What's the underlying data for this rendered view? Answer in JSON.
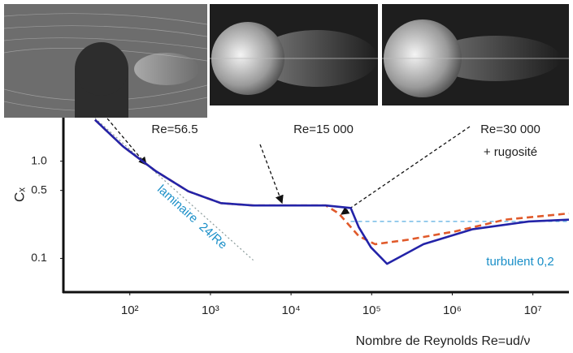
{
  "chart_data": {
    "type": "line",
    "xlog": true,
    "ylog": true,
    "xlim": [
      15,
      28000000
    ],
    "ylim": [
      0.045,
      2.8
    ],
    "xticks": [
      {
        "value": 100,
        "label": "10²"
      },
      {
        "value": 1000,
        "label": "10³"
      },
      {
        "value": 10000,
        "label": "10⁴"
      },
      {
        "value": 100000,
        "label": "10⁵"
      },
      {
        "value": 1000000,
        "label": "10⁶"
      },
      {
        "value": 10000000,
        "label": "10⁷"
      }
    ],
    "yticks": [
      {
        "value": 0.1,
        "label": "0.1"
      },
      0.5,
      {
        "value": 1,
        "label": "1.0"
      }
    ],
    "xlabel": "Nombre de Reynolds Re=ud/ν",
    "ylabel": "Cₓ",
    "series": [
      {
        "color": "#2323a8",
        "style": "solid",
        "x": [
          37,
          83,
          210,
          530,
          1350,
          3400,
          27000,
          55000,
          69000,
          98000,
          155000,
          440000,
          1800000,
          8900000,
          28000000
        ],
        "values": [
          2.66,
          1.41,
          0.79,
          0.49,
          0.37,
          0.35,
          0.35,
          0.33,
          0.21,
          0.13,
          0.088,
          0.14,
          0.2,
          0.24,
          0.25
        ]
      },
      {
        "color": "#e05a2b",
        "style": "dashed",
        "x": [
          37,
          83,
          210,
          530,
          1350,
          3400,
          27000,
          39000,
          69000,
          110000,
          275000,
          1100000,
          4500000,
          28000000
        ],
        "values": [
          2.66,
          1.41,
          0.79,
          0.49,
          0.37,
          0.35,
          0.35,
          0.29,
          0.17,
          0.14,
          0.155,
          0.19,
          0.25,
          0.29
        ]
      },
      {
        "color": "#8a9a9a",
        "style": "dotted",
        "x": [
          37,
          3400
        ],
        "values": [
          2.77,
          0.096
        ]
      },
      {
        "color": "#5aaee0",
        "style": "dashed",
        "x": [
          55000,
          28000000
        ],
        "values": [
          0.24,
          0.24
        ]
      }
    ],
    "annotations": [
      "Re=56.5",
      "Re=15 000",
      "Re=30 000",
      "+ rugosité",
      "laminaire  24/Re",
      "turbulent 0,2"
    ]
  }
}
